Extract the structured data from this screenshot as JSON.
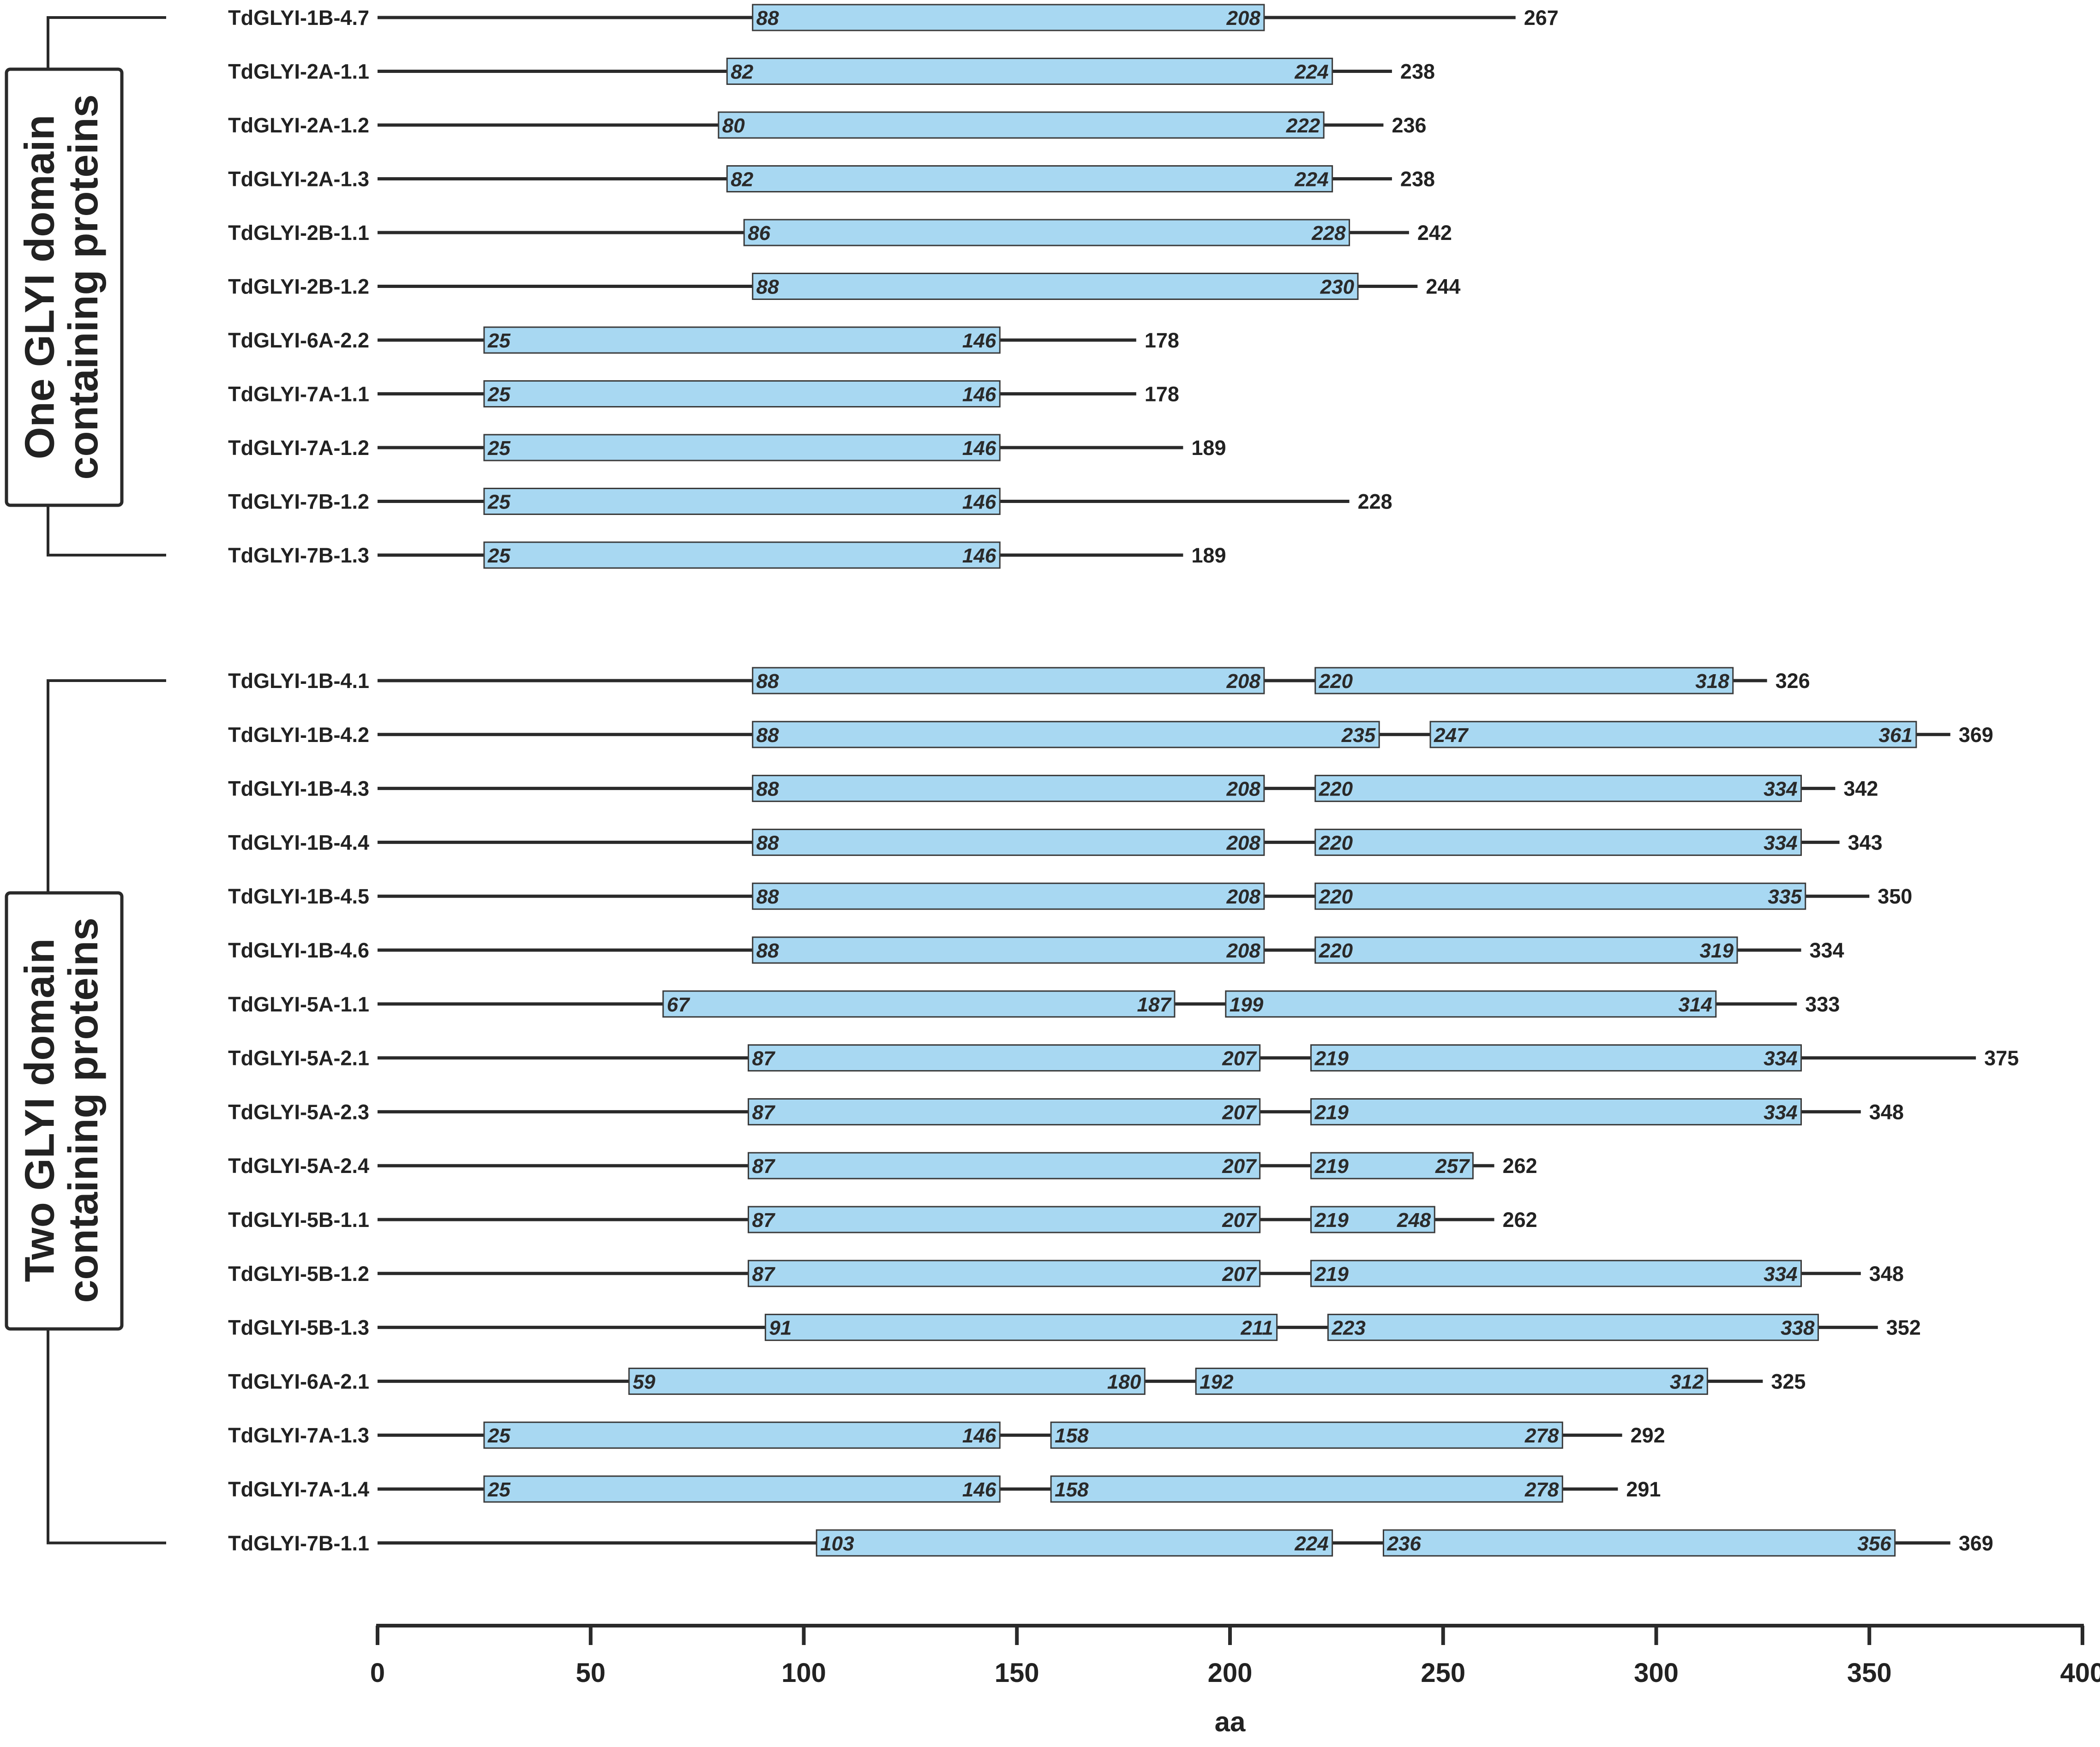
{
  "chart_data": {
    "type": "domain-architecture",
    "xlabel": "aa",
    "xlim": [
      0,
      400
    ],
    "xticks": [
      0,
      50,
      100,
      150,
      200,
      250,
      300,
      350,
      400
    ],
    "colors": {
      "domain_fill": "#a8d8f2",
      "domain_stroke": "#3a3a3a",
      "line": "#2a2a2a",
      "text": "#222222"
    },
    "groups": [
      {
        "label_line1": "One GLYI domain",
        "label_line2": "containing proteins",
        "proteins": [
          {
            "name": "TdGLYI-1B-4.7",
            "length": 267,
            "domains": [
              [
                88,
                208
              ]
            ]
          },
          {
            "name": "TdGLYI-2A-1.1",
            "length": 238,
            "domains": [
              [
                82,
                224
              ]
            ]
          },
          {
            "name": "TdGLYI-2A-1.2",
            "length": 236,
            "domains": [
              [
                80,
                222
              ]
            ]
          },
          {
            "name": "TdGLYI-2A-1.3",
            "length": 238,
            "domains": [
              [
                82,
                224
              ]
            ]
          },
          {
            "name": "TdGLYI-2B-1.1",
            "length": 242,
            "domains": [
              [
                86,
                228
              ]
            ]
          },
          {
            "name": "TdGLYI-2B-1.2",
            "length": 244,
            "domains": [
              [
                88,
                230
              ]
            ]
          },
          {
            "name": "TdGLYI-6A-2.2",
            "length": 178,
            "domains": [
              [
                25,
                146
              ]
            ]
          },
          {
            "name": "TdGLYI-7A-1.1",
            "length": 178,
            "domains": [
              [
                25,
                146
              ]
            ]
          },
          {
            "name": "TdGLYI-7A-1.2",
            "length": 189,
            "domains": [
              [
                25,
                146
              ]
            ]
          },
          {
            "name": "TdGLYI-7B-1.2",
            "length": 228,
            "domains": [
              [
                25,
                146
              ]
            ]
          },
          {
            "name": "TdGLYI-7B-1.3",
            "length": 189,
            "domains": [
              [
                25,
                146
              ]
            ]
          }
        ]
      },
      {
        "label_line1": "Two GLYI domain",
        "label_line2": "containing proteins",
        "proteins": [
          {
            "name": "TdGLYI-1B-4.1",
            "length": 326,
            "domains": [
              [
                88,
                208
              ],
              [
                220,
                318
              ]
            ]
          },
          {
            "name": "TdGLYI-1B-4.2",
            "length": 369,
            "domains": [
              [
                88,
                235
              ],
              [
                247,
                361
              ]
            ]
          },
          {
            "name": "TdGLYI-1B-4.3",
            "length": 342,
            "domains": [
              [
                88,
                208
              ],
              [
                220,
                334
              ]
            ]
          },
          {
            "name": "TdGLYI-1B-4.4",
            "length": 343,
            "domains": [
              [
                88,
                208
              ],
              [
                220,
                334
              ]
            ]
          },
          {
            "name": "TdGLYI-1B-4.5",
            "length": 350,
            "domains": [
              [
                88,
                208
              ],
              [
                220,
                335
              ]
            ]
          },
          {
            "name": "TdGLYI-1B-4.6",
            "length": 334,
            "domains": [
              [
                88,
                208
              ],
              [
                220,
                319
              ]
            ]
          },
          {
            "name": "TdGLYI-5A-1.1",
            "length": 333,
            "domains": [
              [
                67,
                187
              ],
              [
                199,
                314
              ]
            ]
          },
          {
            "name": "TdGLYI-5A-2.1",
            "length": 375,
            "domains": [
              [
                87,
                207
              ],
              [
                219,
                334
              ]
            ]
          },
          {
            "name": "TdGLYI-5A-2.3",
            "length": 348,
            "domains": [
              [
                87,
                207
              ],
              [
                219,
                334
              ]
            ]
          },
          {
            "name": "TdGLYI-5A-2.4",
            "length": 262,
            "domains": [
              [
                87,
                207
              ],
              [
                219,
                257
              ]
            ]
          },
          {
            "name": "TdGLYI-5B-1.1",
            "length": 262,
            "domains": [
              [
                87,
                207
              ],
              [
                219,
                248
              ]
            ]
          },
          {
            "name": "TdGLYI-5B-1.2",
            "length": 348,
            "domains": [
              [
                87,
                207
              ],
              [
                219,
                334
              ]
            ]
          },
          {
            "name": "TdGLYI-5B-1.3",
            "length": 352,
            "domains": [
              [
                91,
                211
              ],
              [
                223,
                338
              ]
            ]
          },
          {
            "name": "TdGLYI-6A-2.1",
            "length": 325,
            "domains": [
              [
                59,
                180
              ],
              [
                192,
                312
              ]
            ]
          },
          {
            "name": "TdGLYI-7A-1.3",
            "length": 292,
            "domains": [
              [
                25,
                146
              ],
              [
                158,
                278
              ]
            ]
          },
          {
            "name": "TdGLYI-7A-1.4",
            "length": 291,
            "domains": [
              [
                25,
                146
              ],
              [
                158,
                278
              ]
            ]
          },
          {
            "name": "TdGLYI-7B-1.1",
            "length": 369,
            "domains": [
              [
                103,
                224
              ],
              [
                236,
                356
              ]
            ]
          }
        ]
      }
    ]
  }
}
